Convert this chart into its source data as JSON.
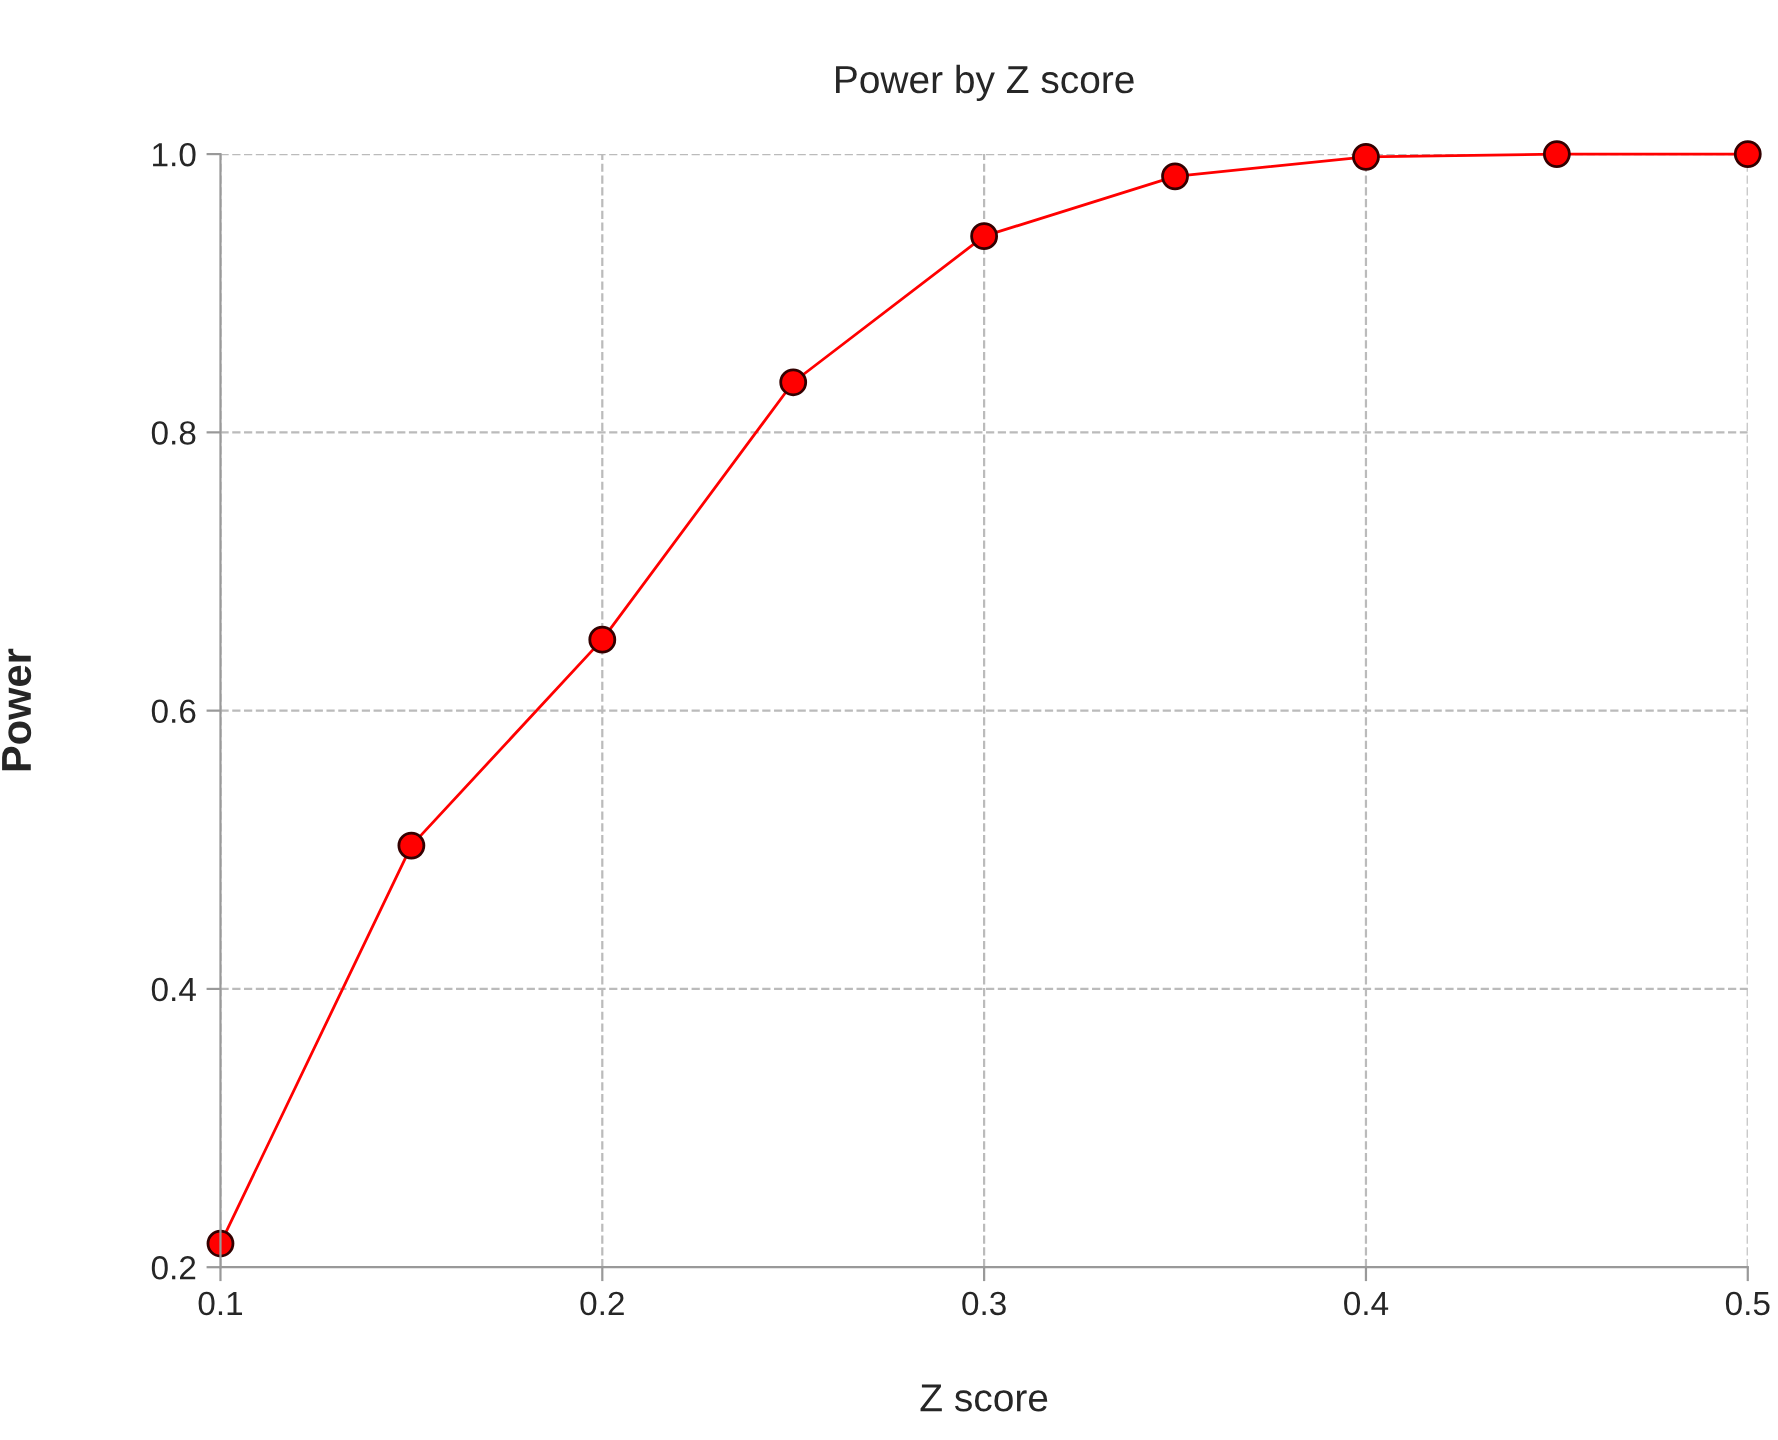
{
  "chart_data": {
    "type": "line",
    "title": "Power by Z score",
    "xlabel": "Z score",
    "ylabel": "Power",
    "x": [
      0.1,
      0.15,
      0.2,
      0.25,
      0.3,
      0.35,
      0.4,
      0.45,
      0.5
    ],
    "series": [
      {
        "color": "#ff0000",
        "values": [
          0.217,
          0.503,
          0.651,
          0.836,
          0.941,
          0.984,
          0.998,
          1.0,
          1.0
        ]
      }
    ],
    "xlim": [
      0.1,
      0.5
    ],
    "xticks": [
      0.1,
      0.2,
      0.3,
      0.4,
      0.5
    ],
    "ylim": [
      0.2,
      1.0
    ],
    "yticks": [
      {
        "value": 0.2,
        "label": "0.2"
      },
      {
        "value": 0.4,
        "label": "0.4"
      },
      {
        "value": 0.6,
        "label": "0.6"
      },
      {
        "value": 0.8,
        "label": "0.8"
      },
      {
        "value": 1.0,
        "label": "1.0"
      }
    ],
    "grid": true,
    "marker": "circle",
    "line_style": "solid"
  }
}
